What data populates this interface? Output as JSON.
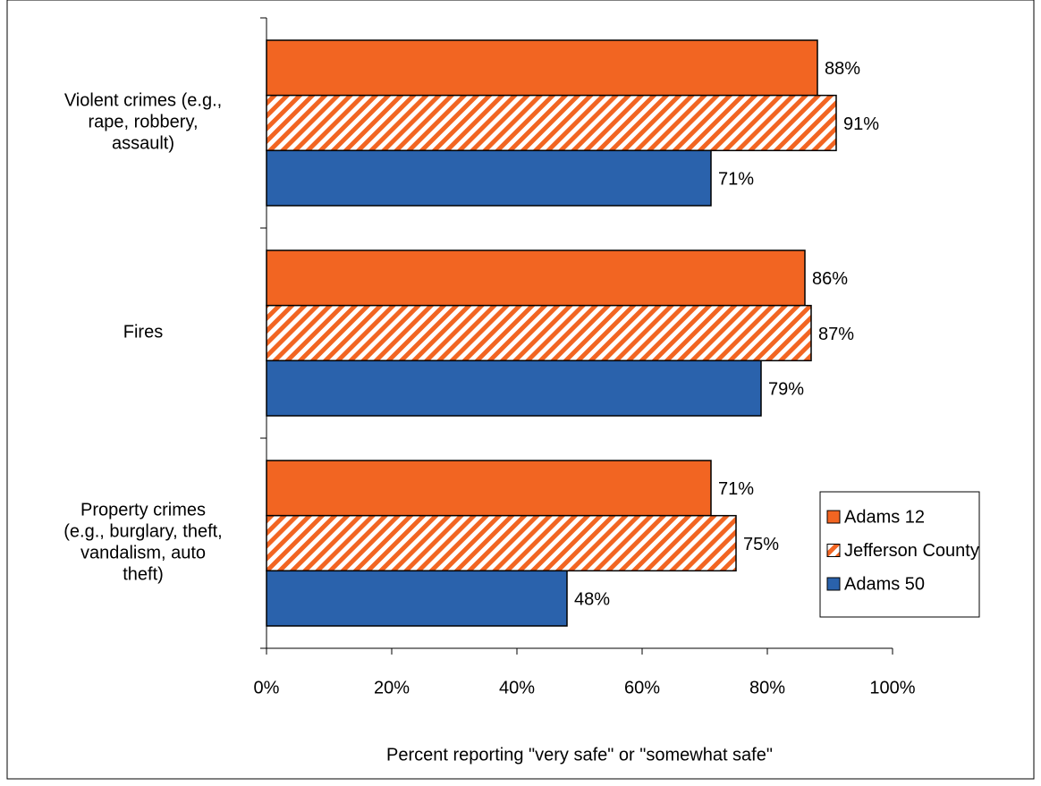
{
  "chart_data": {
    "type": "hbar",
    "categories": [
      "Violent crimes (e.g.,\nrape, robbery,\nassault)",
      "Fires",
      "Property crimes\n(e.g., burglary, theft,\nvandalism, auto\ntheft)"
    ],
    "series": [
      {
        "name": "Adams 12",
        "color": "#f26522",
        "pattern": "solid",
        "values": [
          88,
          86,
          71
        ],
        "value_labels": [
          "88%",
          "86%",
          "71%"
        ]
      },
      {
        "name": "Jefferson County",
        "color": "#f26522",
        "pattern": "hatch",
        "values": [
          91,
          87,
          75
        ],
        "value_labels": [
          "91%",
          "87%",
          "75%"
        ]
      },
      {
        "name": "Adams 50",
        "color": "#2a62ac",
        "pattern": "solid",
        "values": [
          71,
          79,
          48
        ],
        "value_labels": [
          "71%",
          "79%",
          "48%"
        ]
      }
    ],
    "xlim": [
      0,
      100
    ],
    "xticks": [
      {
        "value": 0,
        "label": "0%"
      },
      {
        "value": 20,
        "label": "20%"
      },
      {
        "value": 40,
        "label": "40%"
      },
      {
        "value": 60,
        "label": "60%"
      },
      {
        "value": 80,
        "label": "80%"
      },
      {
        "value": 100,
        "label": "100%"
      }
    ],
    "x_label": "Percent reporting \"very safe\" or \"somewhat safe\"",
    "legend": "right"
  }
}
